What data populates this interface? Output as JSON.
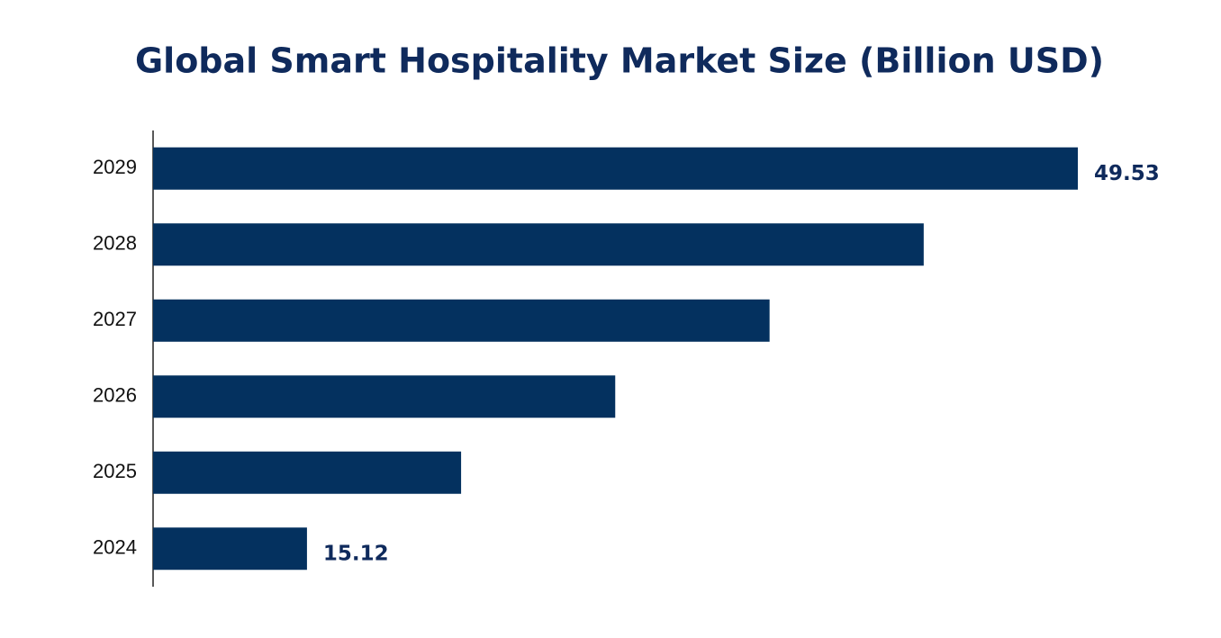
{
  "chart_data": {
    "type": "barh",
    "title": "Global Smart Hospitality Market Size (Billion USD)",
    "categories": [
      "2024",
      "2025",
      "2026",
      "2027",
      "2028",
      "2029"
    ],
    "values": [
      15.12,
      22.0,
      28.88,
      35.77,
      42.65,
      49.53
    ],
    "color": "#04315f",
    "xlim": [
      8.25,
      49.53
    ]
  }
}
